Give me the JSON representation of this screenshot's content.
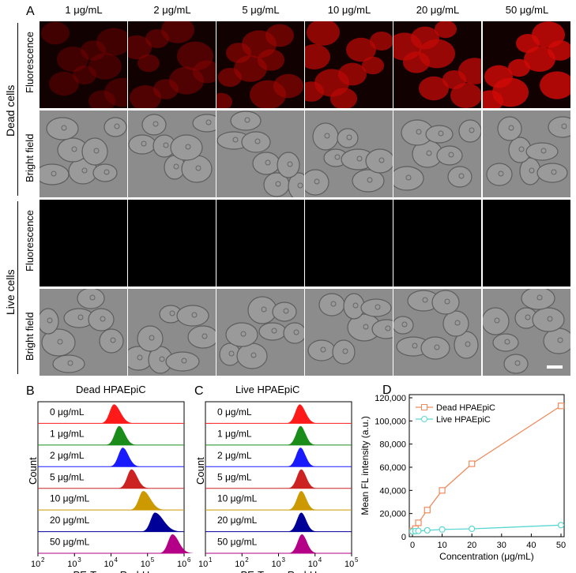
{
  "panel_a": {
    "letter": "A",
    "concentrations": [
      "1 μg/mL",
      "2 μg/mL",
      "5 μg/mL",
      "10 μg/mL",
      "20 μg/mL",
      "50 μg/mL"
    ],
    "groups": [
      {
        "label": "Dead cells",
        "rows": [
          "Fluorescence",
          "Bright field"
        ]
      },
      {
        "label": "Live cells",
        "rows": [
          "Fluorescence",
          "Bright field"
        ]
      }
    ],
    "dead_fluorescence_levels": [
      0.25,
      0.35,
      0.5,
      0.7,
      0.75,
      0.85
    ]
  },
  "panel_b": {
    "letter": "B",
    "title": "Dead HPAEpiC",
    "xlabel": "PE-Texas Red-H",
    "ylabel": "Count",
    "xticks": [
      "10",
      "10",
      "10",
      "10",
      "10"
    ],
    "xtick_exps": [
      "2",
      "3",
      "4",
      "5",
      "6"
    ],
    "samples": [
      "0 μg/mL",
      "1 μg/mL",
      "2 μg/mL",
      "5 μg/mL",
      "10 μg/mL",
      "20 μg/mL",
      "50 μg/mL"
    ],
    "colors": [
      "#ff1a1a",
      "#1a8c1a",
      "#1a1aff",
      "#cc2222",
      "#cc9900",
      "#000099",
      "#b30086"
    ]
  },
  "panel_c": {
    "letter": "C",
    "title": "Live HPAEpiC",
    "xlabel": "PE-Texas Red-H",
    "ylabel": "Count",
    "xticks": [
      "10",
      "10",
      "10",
      "10",
      "10"
    ],
    "xtick_exps": [
      "1",
      "2",
      "3",
      "4",
      "5"
    ],
    "samples": [
      "0 μg/mL",
      "1 μg/mL",
      "2 μg/mL",
      "5 μg/mL",
      "10 μg/mL",
      "20 μg/mL",
      "50 μg/mL"
    ],
    "colors": [
      "#ff1a1a",
      "#1a8c1a",
      "#1a1aff",
      "#cc2222",
      "#cc9900",
      "#000099",
      "#b30086"
    ]
  },
  "chart_data": [
    {
      "type": "area",
      "title": "Dead HPAEpiC",
      "xlabel": "PE-Texas Red-H",
      "ylabel": "Count",
      "xscale": "log",
      "xlim": [
        100,
        1000000
      ],
      "series": [
        {
          "name": "0 μg/mL",
          "peak": 12000
        },
        {
          "name": "1 μg/mL",
          "peak": 15000
        },
        {
          "name": "2 μg/mL",
          "peak": 18000
        },
        {
          "name": "5 μg/mL",
          "peak": 28000
        },
        {
          "name": "10 μg/mL",
          "peak": 45000
        },
        {
          "name": "20 μg/mL",
          "peak": 75000
        },
        {
          "name": "50 μg/mL",
          "peak": 150000
        }
      ]
    },
    {
      "type": "area",
      "title": "Live HPAEpiC",
      "xlabel": "PE-Texas Red-H",
      "ylabel": "Count",
      "xscale": "log",
      "xlim": [
        10,
        100000
      ],
      "series": [
        {
          "name": "0 μg/mL",
          "peak": 4000
        },
        {
          "name": "1 μg/mL",
          "peak": 4200
        },
        {
          "name": "2 μg/mL",
          "peak": 4300
        },
        {
          "name": "5 μg/mL",
          "peak": 4400
        },
        {
          "name": "10 μg/mL",
          "peak": 4500
        },
        {
          "name": "20 μg/mL",
          "peak": 4600
        },
        {
          "name": "50 μg/mL",
          "peak": 4800
        }
      ]
    },
    {
      "type": "line",
      "xlabel": "Concentration (μg/mL)",
      "ylabel": "Mean FL intensity (a.u.)",
      "xlim": [
        0,
        50
      ],
      "ylim": [
        0,
        120000
      ],
      "xticks": [
        "0",
        "10",
        "20",
        "30",
        "40",
        "50"
      ],
      "yticks": [
        "0",
        "20,000",
        "40,000",
        "60,000",
        "80,000",
        "100,000",
        "120,000"
      ],
      "legend": "top-left",
      "x": [
        0,
        1,
        2,
        5,
        10,
        20,
        50
      ],
      "series": [
        {
          "name": "Dead HPAEpiC",
          "color": "#f08a5d",
          "marker": "square",
          "values": [
            5000,
            7000,
            12000,
            23000,
            40000,
            63000,
            113000
          ]
        },
        {
          "name": "Live HPAEpiC",
          "color": "#5bd6d0",
          "marker": "circle",
          "values": [
            4500,
            4800,
            5000,
            5500,
            6200,
            6800,
            10000
          ]
        }
      ]
    }
  ]
}
